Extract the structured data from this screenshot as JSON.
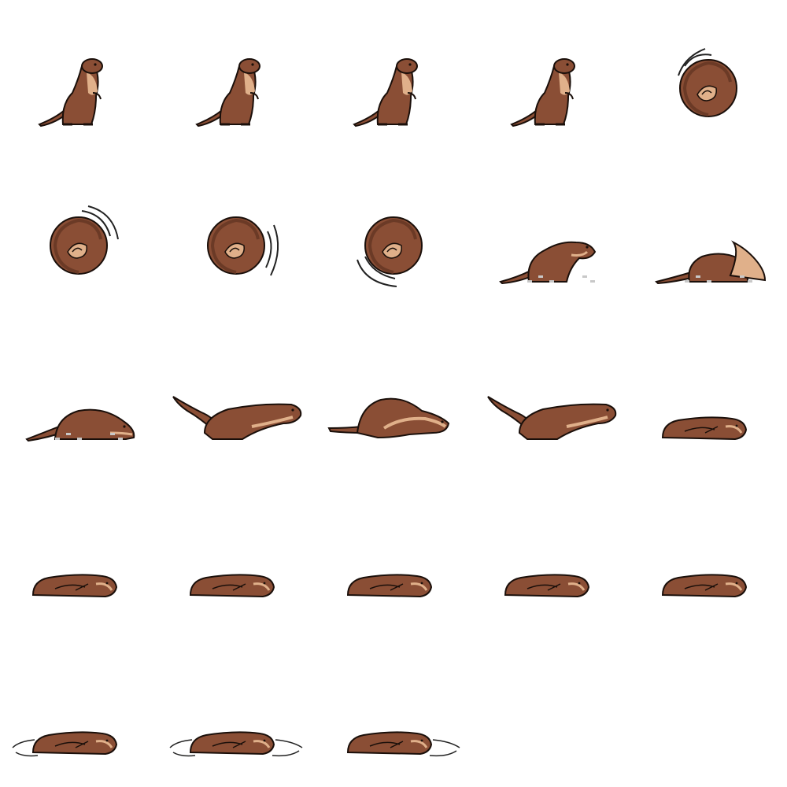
{
  "sprite_sheet": {
    "grid": {
      "columns": 5,
      "rows": 5
    },
    "frame_count": 23,
    "colors": {
      "fur": "#8a4e35",
      "fur_dark": "#6b3a26",
      "belly": "#e0b08a",
      "outline": "#1a0f0a",
      "dust": "#c8c8c8",
      "motion_lines": "#222222"
    },
    "frames": [
      {
        "pose": "stand"
      },
      {
        "pose": "stand"
      },
      {
        "pose": "stand"
      },
      {
        "pose": "stand"
      },
      {
        "pose": "curl",
        "spin": "tl"
      },
      {
        "pose": "curl",
        "spin": "tr"
      },
      {
        "pose": "curl",
        "spin": "r"
      },
      {
        "pose": "curl",
        "spin": "bl"
      },
      {
        "pose": "crouch",
        "dust": true
      },
      {
        "pose": "dig",
        "dust": true
      },
      {
        "pose": "low",
        "dust": true
      },
      {
        "pose": "lunge"
      },
      {
        "pose": "arch"
      },
      {
        "pose": "lunge"
      },
      {
        "pose": "lie"
      },
      {
        "pose": "lie"
      },
      {
        "pose": "lie"
      },
      {
        "pose": "lie"
      },
      {
        "pose": "lie"
      },
      {
        "pose": "lie"
      },
      {
        "pose": "lie",
        "ripple": "left"
      },
      {
        "pose": "lie",
        "ripple": "both"
      },
      {
        "pose": "lie",
        "ripple": "right"
      }
    ]
  }
}
